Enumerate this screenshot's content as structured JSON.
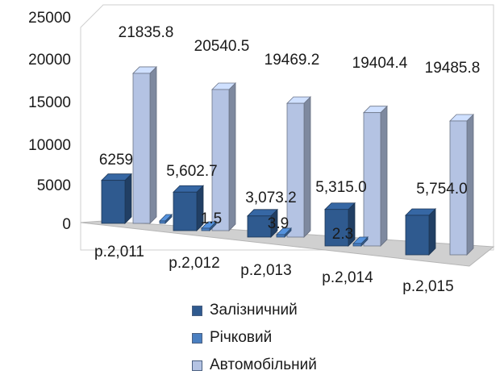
{
  "chart_data": {
    "type": "bar",
    "categories": [
      "р.2,011",
      "р.2,012",
      "р.2,013",
      "р.2,014",
      "р.2,015"
    ],
    "series": [
      {
        "name": "Залізничний",
        "values": [
          6259,
          5602.7,
          3073.2,
          5315.0,
          5754.0
        ],
        "labels": [
          "6259",
          "5,602.7",
          "3,073.2",
          "5,315.0",
          "5,754.0"
        ]
      },
      {
        "name": "Річковий",
        "values": [
          0,
          1.5,
          3.9,
          2.3,
          0
        ],
        "labels": [
          "",
          "1.5",
          "3.9",
          "2.3",
          ""
        ]
      },
      {
        "name": "Автомобільний",
        "values": [
          21835.8,
          20540.5,
          19469.2,
          19404.4,
          19485.8
        ],
        "labels": [
          "21835.8",
          "20540.5",
          "19469.2",
          "19404.4",
          "19485.8"
        ]
      }
    ],
    "ylim": [
      0,
      25000
    ],
    "yticks": [
      "0",
      "5000",
      "10000",
      "15000",
      "20000",
      "25000"
    ],
    "grid": false,
    "legend": "bottom",
    "style": "3d-column",
    "colors": {
      "Залізничний": "#2f5a8f",
      "Річковий": "#4a7fc0",
      "Автомобільний": "#b4c3e3"
    }
  }
}
